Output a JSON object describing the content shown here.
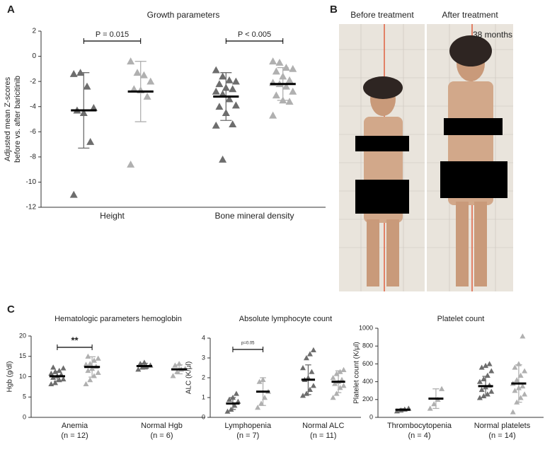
{
  "panels": [
    "A",
    "B",
    "C"
  ],
  "photo": {
    "labels": [
      "Before treatment",
      "After treatment"
    ],
    "annotation": "38 months"
  },
  "chart_data": [
    {
      "type": "dot",
      "title": "Growth parameters",
      "y_label": [
        "Adjusted mean Z-scores",
        "before vs. after baricitinib"
      ],
      "categories": [
        "Height",
        "Bone mineral density"
      ],
      "annotations": [
        "P = 0.015",
        "P < 0.005"
      ],
      "ylim": [
        -12,
        2
      ],
      "yticks": [
        -12,
        -10,
        -8,
        -6,
        -4,
        -2,
        0,
        2
      ],
      "series": [
        {
          "color": "#6d6d6d",
          "values": [
            [
              -1.4,
              -1.3,
              -2.4,
              -4.1,
              -4.3,
              -4.5,
              -6.8,
              -11.0
            ],
            [
              -1.1,
              -1.6,
              -1.9,
              -2.0,
              -2.2,
              -2.5,
              -2.6,
              -2.8,
              -3.0,
              -3.4,
              -3.9,
              -4.0,
              -4.5,
              -5.4,
              -5.5,
              -8.2
            ]
          ],
          "mean": [
            -4.3,
            -3.2
          ],
          "sd": [
            3.0,
            1.9
          ]
        },
        {
          "color": "#b0b0b0",
          "values": [
            [
              -0.4,
              -1.3,
              -1.5,
              -2.0,
              -2.6,
              -2.7,
              -3.2,
              -8.6
            ],
            [
              -0.4,
              -0.5,
              -0.9,
              -1.0,
              -1.2,
              -1.6,
              -1.9,
              -2.1,
              -2.2,
              -2.4,
              -2.8,
              -3.1,
              -3.5,
              -3.6,
              -4.7
            ]
          ],
          "mean": [
            -2.8,
            -2.2
          ],
          "sd": [
            2.4,
            1.3
          ]
        }
      ]
    },
    {
      "type": "dot",
      "title": "Hematologic parameters hemoglobin",
      "y_label": [
        "Hgb (g/dl)"
      ],
      "categories": [
        "Anemia",
        "Normal Hgb"
      ],
      "category_notes": [
        "(n = 12)",
        "(n = 6)"
      ],
      "annotations": [
        "**",
        null
      ],
      "ylim": [
        0,
        20
      ],
      "yticks": [
        0,
        5,
        10,
        15,
        20
      ],
      "series": [
        {
          "color": "#6d6d6d",
          "values": [
            [
              8.2,
              8.5,
              9.2,
              9.4,
              9.8,
              10.2,
              10.5,
              10.8,
              11.2,
              11.5,
              12.1,
              12.3
            ],
            [
              11.8,
              12.3,
              12.5,
              12.8,
              13.2,
              13.5
            ]
          ],
          "mean": [
            10.1,
            12.6
          ],
          "sd": [
            1.2,
            0.7
          ]
        },
        {
          "color": "#b0b0b0",
          "values": [
            [
              8.2,
              9.2,
              10.2,
              11.0,
              11.5,
              12.0,
              12.5,
              13.0,
              13.2,
              14.0,
              14.5,
              15.0
            ],
            [
              10.2,
              11.2,
              11.8,
              12.0,
              12.8,
              13.2
            ]
          ],
          "mean": [
            12.4,
            11.8
          ],
          "sd": [
            2.5,
            1.1
          ]
        }
      ]
    },
    {
      "type": "dot",
      "title": "Absolute lymphocyte count",
      "y_label": [
        "ALC (K/μl)"
      ],
      "categories": [
        "Lymphopenia",
        "Normal ALC"
      ],
      "category_notes": [
        "(n = 7)",
        "(n = 11)"
      ],
      "annotations": [
        "p=0.05",
        null
      ],
      "ylim": [
        0,
        4
      ],
      "yticks": [
        0,
        1,
        2,
        3,
        4
      ],
      "series": [
        {
          "color": "#6d6d6d",
          "values": [
            [
              0.3,
              0.4,
              0.6,
              0.8,
              0.9,
              1.0,
              1.2
            ],
            [
              1.1,
              1.2,
              1.4,
              1.6,
              1.9,
              2.0,
              2.3,
              2.5,
              3.0,
              3.2,
              3.4
            ]
          ],
          "mean": [
            0.7,
            1.9
          ],
          "sd": [
            0.3,
            0.75
          ]
        },
        {
          "color": "#b0b0b0",
          "values": [
            [
              0.5,
              0.7,
              1.0,
              1.3,
              1.8,
              1.9
            ],
            [
              1.0,
              1.2,
              1.5,
              1.6,
              1.7,
              1.8,
              1.9,
              2.0,
              2.2,
              2.3,
              2.4
            ]
          ],
          "mean": [
            1.3,
            1.8
          ],
          "sd": [
            0.7,
            0.55
          ]
        }
      ]
    },
    {
      "type": "dot",
      "title": "Platelet count",
      "y_label": [
        "Platelet count (K/μl)"
      ],
      "categories": [
        "Thrombocytopenia",
        "Normal platelets"
      ],
      "category_notes": [
        "(n = 4)",
        "(n = 14)"
      ],
      "annotations": [
        null,
        null
      ],
      "ylim": [
        0,
        1000
      ],
      "yticks": [
        0,
        200,
        400,
        600,
        800,
        1000
      ],
      "series": [
        {
          "color": "#6d6d6d",
          "values": [
            [
              70,
              80,
              90,
              100
            ],
            [
              220,
              240,
              260,
              290,
              310,
              340,
              360,
              400,
              430,
              470,
              520,
              560,
              580,
              600
            ]
          ],
          "mean": [
            85,
            350
          ],
          "sd": [
            12,
            110
          ]
        },
        {
          "color": "#b0b0b0",
          "values": [
            [
              100,
              150,
              200,
              320
            ],
            [
              60,
              170,
              220,
              260,
              300,
              330,
              350,
              380,
              420,
              470,
              520,
              560,
              600,
              910
            ]
          ],
          "mean": [
            210,
            380
          ],
          "sd": [
            110,
            210
          ]
        }
      ]
    }
  ]
}
